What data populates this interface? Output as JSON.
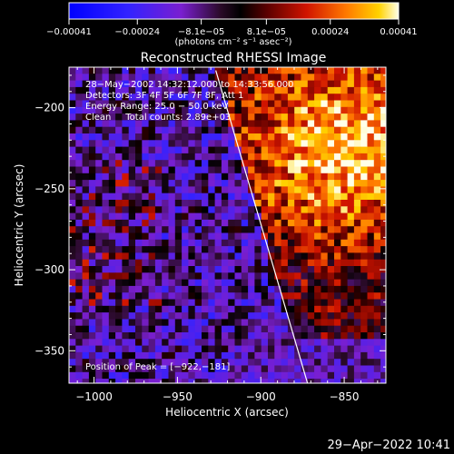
{
  "chart_data": {
    "type": "heatmap",
    "title": "Reconstructed RHESSI Image",
    "xlabel": "Heliocentric X (arcsec)",
    "ylabel": "Heliocentric Y (arcsec)",
    "xlim": [
      -1015,
      -825
    ],
    "ylim": [
      -370,
      -175
    ],
    "x_ticks": [
      {
        "value": -1000,
        "label": "−1000"
      },
      {
        "value": -950,
        "label": "−950"
      },
      {
        "value": -900,
        "label": "−900"
      },
      {
        "value": -850,
        "label": "−850"
      }
    ],
    "y_ticks": [
      {
        "value": -200,
        "label": "−200"
      },
      {
        "value": -250,
        "label": "−250"
      },
      {
        "value": -300,
        "label": "−300"
      },
      {
        "value": -350,
        "label": "−350"
      }
    ],
    "colorbar": {
      "range": [
        -0.00041,
        0.00041
      ],
      "ticks": [
        {
          "value": -0.00041,
          "label": "−0.00041"
        },
        {
          "value": -0.00024,
          "label": "−0.00024"
        },
        {
          "value": -8.1e-05,
          "label": "−8.1e−05"
        },
        {
          "value": 8.1e-05,
          "label": "8.1e−05"
        },
        {
          "value": 0.00024,
          "label": "0.00024"
        },
        {
          "value": 0.00041,
          "label": "0.00041"
        }
      ],
      "unit_label": "(photons cm⁻² s⁻¹ asec⁻²)"
    },
    "annotations": [
      "28−May−2002 14:32:12.000 to 14:33:56.000",
      "Detectors: 3F 4F 5F 6F 7F 8F, Att 1",
      "Energy Range: 25.0 − 50.0 keV",
      "Clean     Total counts: 2.89e+03"
    ],
    "peak_label": "Position of Peak = [−922,−181]",
    "limb_line": [
      [
        -927,
        -177
      ],
      [
        -872,
        -370
      ]
    ],
    "bright_region": "upper right (x ≈ −925 to −825, y ≈ −175 to −310)"
  },
  "footer": {
    "date": "29−Apr−2022 10:41"
  }
}
